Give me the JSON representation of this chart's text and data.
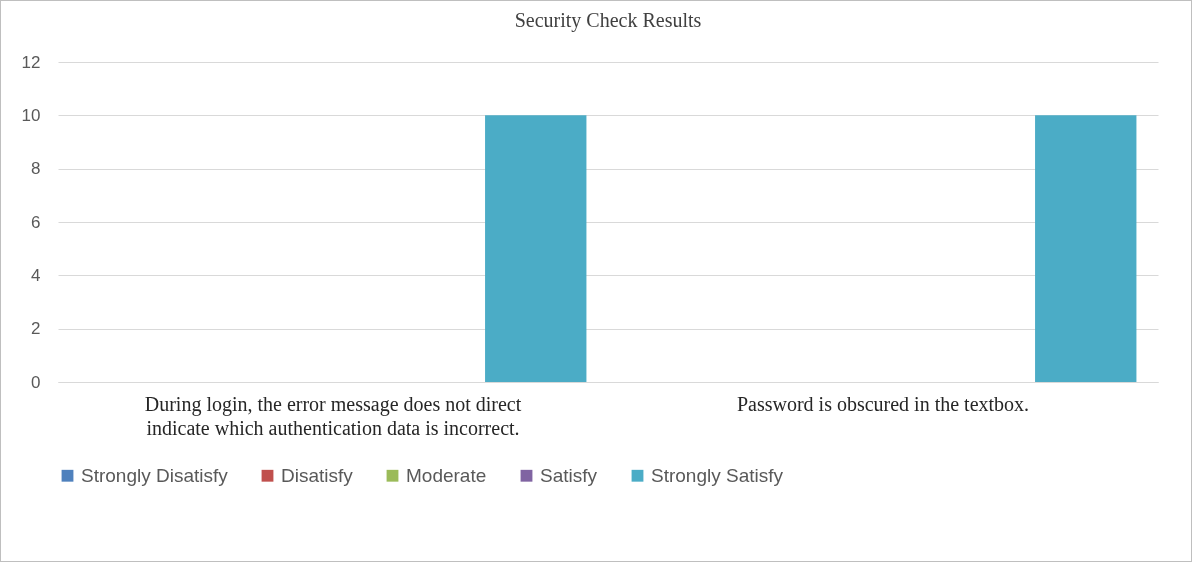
{
  "chart_data": {
    "type": "bar",
    "title": "Security Check Results",
    "categories": [
      "During login, the error message does not direct indicate which authentication data is incorrect.",
      "Password is obscured in the textbox."
    ],
    "series": [
      {
        "name": "Strongly Disatisfy",
        "color": "#4f81bd",
        "values": [
          0,
          0
        ]
      },
      {
        "name": "Disatisfy",
        "color": "#c0504d",
        "values": [
          0,
          0
        ]
      },
      {
        "name": "Moderate",
        "color": "#9bbb59",
        "values": [
          0,
          0
        ]
      },
      {
        "name": "Satisfy",
        "color": "#8064a2",
        "values": [
          0,
          0
        ]
      },
      {
        "name": "Strongly Satisfy",
        "color": "#4bacc6",
        "values": [
          10,
          10
        ]
      }
    ],
    "ylim": [
      0,
      12
    ],
    "yticks": [
      0,
      2,
      4,
      6,
      8,
      10,
      12
    ],
    "grid": "y",
    "legend": "bottom"
  }
}
